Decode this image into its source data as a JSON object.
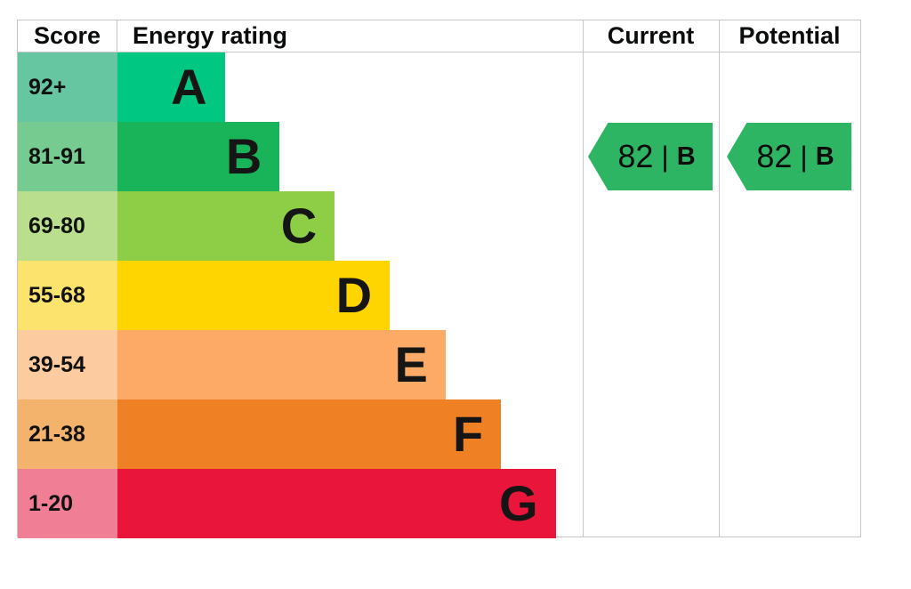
{
  "header": {
    "score": "Score",
    "energy_rating": "Energy rating",
    "current": "Current",
    "potential": "Potential"
  },
  "chart_data": {
    "type": "bar",
    "title": "EPC energy rating chart",
    "bands": [
      {
        "letter": "A",
        "score_range": "92+",
        "bar_color": "#00c781",
        "score_bg": "#65c6a1",
        "width_pct": 23.0
      },
      {
        "letter": "B",
        "score_range": "81-91",
        "bar_color": "#19b459",
        "score_bg": "#76cc90",
        "width_pct": 34.8
      },
      {
        "letter": "C",
        "score_range": "69-80",
        "bar_color": "#8dce46",
        "score_bg": "#b9de8d",
        "width_pct": 46.6
      },
      {
        "letter": "D",
        "score_range": "55-68",
        "bar_color": "#ffd500",
        "score_bg": "#fbe36d",
        "width_pct": 58.4
      },
      {
        "letter": "E",
        "score_range": "39-54",
        "bar_color": "#fcaa65",
        "score_bg": "#fccb9f",
        "width_pct": 70.4
      },
      {
        "letter": "F",
        "score_range": "21-38",
        "bar_color": "#ef8023",
        "score_bg": "#f3b36c",
        "width_pct": 82.3
      },
      {
        "letter": "G",
        "score_range": "1-20",
        "bar_color": "#e9153b",
        "score_bg": "#f07e95",
        "width_pct": 94.0
      }
    ],
    "current": {
      "value": "82",
      "separator": "|",
      "band": "B",
      "badge_color": "#2eb564"
    },
    "potential": {
      "value": "82",
      "separator": "|",
      "band": "B",
      "badge_color": "#2eb564"
    }
  }
}
